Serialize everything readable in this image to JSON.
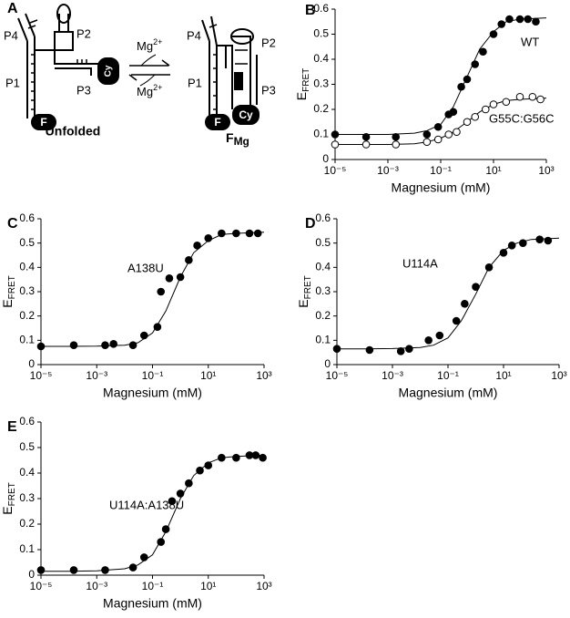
{
  "diagram": {
    "label": "A",
    "ion": "Mg",
    "ion_charge": "2+",
    "unfolded": {
      "title": "Unfolded",
      "helices": [
        "P4",
        "P2",
        "P1",
        "P3"
      ],
      "donor": "F",
      "acceptor": "Cy"
    },
    "folded": {
      "title": "F",
      "title_sub": "Mg",
      "helices": [
        "P4",
        "P2",
        "P1",
        "P3"
      ],
      "donor": "F",
      "acceptor": "Cy"
    }
  },
  "chart_data": [
    {
      "type": "scatter",
      "panel": "B",
      "xlabel": "Magnesium (mM)",
      "ylabel": "E",
      "ylabel_sub": "FRET",
      "log_x": true,
      "xlim": [
        1e-05,
        1000
      ],
      "xticks": [
        {
          "value": 1e-05,
          "label": "10⁻⁵"
        },
        {
          "value": 0.001,
          "label": "10⁻³"
        },
        {
          "value": 0.1,
          "label": "10⁻¹"
        },
        {
          "value": 10,
          "label": "10¹"
        },
        {
          "value": 1000,
          "label": "10³"
        }
      ],
      "ylim": [
        0,
        0.6
      ],
      "yticks": [
        0,
        0.1,
        0.2,
        0.3,
        0.4,
        0.5,
        0.6
      ],
      "series": [
        {
          "name": "WT",
          "color": "#000000",
          "marker": "filled",
          "x": [
            1e-05,
            0.00015,
            0.002,
            0.03,
            0.08,
            0.2,
            0.3,
            0.6,
            1,
            2,
            4,
            10,
            20,
            40,
            100,
            200,
            400
          ],
          "values": [
            0.1,
            0.09,
            0.09,
            0.1,
            0.13,
            0.18,
            0.19,
            0.29,
            0.32,
            0.38,
            0.43,
            0.5,
            0.54,
            0.56,
            0.56,
            0.56,
            0.55
          ],
          "fit": {
            "x": [
              1e-05,
              0.0001,
              0.001,
              0.01,
              0.03,
              0.1,
              0.3,
              1,
              3,
              10,
              30,
              100,
              1000
            ],
            "values": [
              0.1,
              0.1,
              0.1,
              0.105,
              0.115,
              0.14,
              0.21,
              0.33,
              0.44,
              0.51,
              0.55,
              0.56,
              0.565
            ]
          }
        },
        {
          "name": "G55C:G56C",
          "color": "#000000",
          "marker": "open",
          "x": [
            1e-05,
            0.00015,
            0.002,
            0.03,
            0.08,
            0.2,
            0.4,
            1,
            2,
            5,
            10,
            30,
            100,
            300,
            600
          ],
          "values": [
            0.06,
            0.06,
            0.06,
            0.07,
            0.08,
            0.1,
            0.11,
            0.15,
            0.17,
            0.2,
            0.22,
            0.23,
            0.25,
            0.25,
            0.24
          ],
          "fit": {
            "x": [
              1e-05,
              0.0001,
              0.001,
              0.01,
              0.03,
              0.1,
              0.3,
              1,
              3,
              10,
              30,
              100,
              1000
            ],
            "values": [
              0.06,
              0.06,
              0.06,
              0.063,
              0.07,
              0.085,
              0.11,
              0.15,
              0.19,
              0.22,
              0.235,
              0.24,
              0.245
            ]
          }
        }
      ]
    },
    {
      "type": "scatter",
      "panel": "C",
      "xlabel": "Magnesium (mM)",
      "ylabel": "E",
      "ylabel_sub": "FRET",
      "log_x": true,
      "xlim": [
        1e-05,
        1000
      ],
      "xticks": [
        {
          "value": 1e-05,
          "label": "10⁻⁵"
        },
        {
          "value": 0.001,
          "label": "10⁻³"
        },
        {
          "value": 0.1,
          "label": "10⁻¹"
        },
        {
          "value": 10,
          "label": "10¹"
        },
        {
          "value": 1000,
          "label": "10³"
        }
      ],
      "ylim": [
        0,
        0.6
      ],
      "yticks": [
        0,
        0.1,
        0.2,
        0.3,
        0.4,
        0.5,
        0.6
      ],
      "series": [
        {
          "name": "A138U",
          "color": "#000000",
          "marker": "filled",
          "x": [
            1e-05,
            0.00015,
            0.002,
            0.004,
            0.02,
            0.05,
            0.15,
            0.2,
            0.4,
            1,
            2,
            4,
            10,
            30,
            100,
            300,
            600
          ],
          "values": [
            0.075,
            0.08,
            0.08,
            0.085,
            0.08,
            0.12,
            0.155,
            0.3,
            0.355,
            0.36,
            0.43,
            0.49,
            0.52,
            0.54,
            0.54,
            0.54,
            0.54
          ],
          "fit": {
            "x": [
              1e-05,
              0.0001,
              0.001,
              0.01,
              0.03,
              0.1,
              0.3,
              1,
              3,
              10,
              30,
              100,
              1000
            ],
            "values": [
              0.075,
              0.075,
              0.076,
              0.08,
              0.09,
              0.13,
              0.22,
              0.36,
              0.46,
              0.51,
              0.535,
              0.54,
              0.545
            ]
          }
        }
      ]
    },
    {
      "type": "scatter",
      "panel": "D",
      "xlabel": "Magnesium (mM)",
      "ylabel": "E",
      "ylabel_sub": "FRET",
      "log_x": true,
      "xlim": [
        1e-05,
        1000
      ],
      "xticks": [
        {
          "value": 1e-05,
          "label": "10⁻⁵"
        },
        {
          "value": 0.001,
          "label": "10⁻³"
        },
        {
          "value": 0.1,
          "label": "10⁻¹"
        },
        {
          "value": 10,
          "label": "10¹"
        },
        {
          "value": 1000,
          "label": "10³"
        }
      ],
      "ylim": [
        0,
        0.6
      ],
      "yticks": [
        0,
        0.1,
        0.2,
        0.3,
        0.4,
        0.5,
        0.6
      ],
      "series": [
        {
          "name": "U114A",
          "color": "#000000",
          "marker": "filled",
          "x": [
            1e-05,
            0.00015,
            0.002,
            0.004,
            0.02,
            0.05,
            0.2,
            0.4,
            1,
            3,
            10,
            20,
            50,
            200,
            400
          ],
          "values": [
            0.065,
            0.06,
            0.055,
            0.065,
            0.1,
            0.12,
            0.18,
            0.25,
            0.32,
            0.4,
            0.46,
            0.49,
            0.5,
            0.515,
            0.51
          ],
          "fit": {
            "x": [
              1e-05,
              0.0001,
              0.001,
              0.01,
              0.03,
              0.1,
              0.3,
              1,
              3,
              10,
              30,
              100,
              1000
            ],
            "values": [
              0.065,
              0.065,
              0.066,
              0.07,
              0.08,
              0.11,
              0.18,
              0.29,
              0.4,
              0.47,
              0.5,
              0.515,
              0.52
            ]
          }
        }
      ]
    },
    {
      "type": "scatter",
      "panel": "E",
      "xlabel": "Magnesium (mM)",
      "ylabel": "E",
      "ylabel_sub": "FRET",
      "log_x": true,
      "xlim": [
        1e-05,
        1000
      ],
      "xticks": [
        {
          "value": 1e-05,
          "label": "10⁻⁵"
        },
        {
          "value": 0.001,
          "label": "10⁻³"
        },
        {
          "value": 0.1,
          "label": "10⁻¹"
        },
        {
          "value": 10,
          "label": "10¹"
        },
        {
          "value": 1000,
          "label": "10³"
        }
      ],
      "ylim": [
        0,
        0.6
      ],
      "yticks": [
        0,
        0.1,
        0.2,
        0.3,
        0.4,
        0.5,
        0.6
      ],
      "series": [
        {
          "name": "U114A:A138U",
          "color": "#000000",
          "marker": "filled",
          "x": [
            1e-05,
            0.00015,
            0.002,
            0.02,
            0.05,
            0.2,
            0.3,
            0.5,
            1,
            2,
            5,
            10,
            30,
            100,
            300,
            500,
            900
          ],
          "values": [
            0.02,
            0.02,
            0.02,
            0.03,
            0.07,
            0.13,
            0.18,
            0.29,
            0.32,
            0.36,
            0.41,
            0.43,
            0.46,
            0.46,
            0.47,
            0.47,
            0.46
          ],
          "fit": {
            "x": [
              1e-05,
              0.0001,
              0.001,
              0.01,
              0.03,
              0.1,
              0.3,
              1,
              3,
              10,
              30,
              100,
              1000
            ],
            "values": [
              0.015,
              0.015,
              0.017,
              0.025,
              0.04,
              0.08,
              0.17,
              0.3,
              0.39,
              0.44,
              0.46,
              0.465,
              0.47
            ]
          }
        }
      ]
    }
  ]
}
